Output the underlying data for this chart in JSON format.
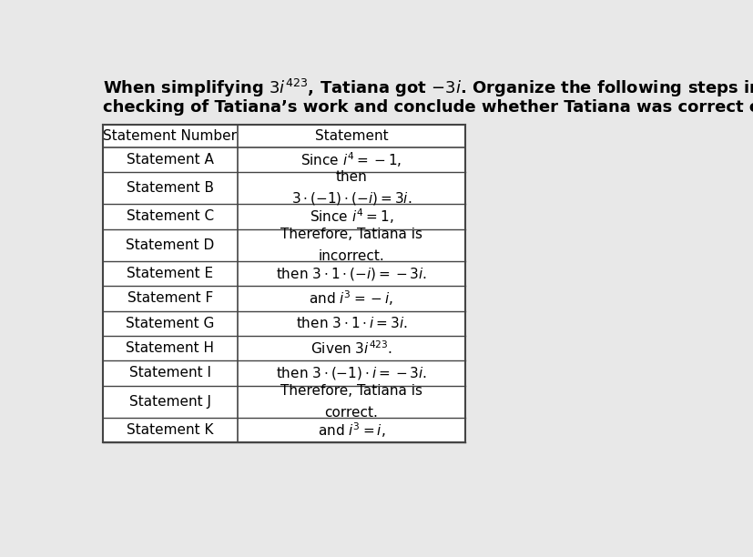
{
  "col1_header": "Statement Number",
  "col2_header": "Statement",
  "rows": [
    [
      "Statement A",
      "Since $i^4 = -1,$"
    ],
    [
      "Statement B",
      "then\n$3 \\cdot (-1) \\cdot (-i) = 3i.$"
    ],
    [
      "Statement C",
      "Since $i^4 = 1,$"
    ],
    [
      "Statement D",
      "Therefore, Tatiana is\nincorrect."
    ],
    [
      "Statement E",
      "then $3 \\cdot 1 \\cdot (-i) = -3i.$"
    ],
    [
      "Statement F",
      "and $i^3 = -i,$"
    ],
    [
      "Statement G",
      "then $3 \\cdot 1 \\cdot i = 3i.$"
    ],
    [
      "Statement H",
      "Given $3i^{423}.$"
    ],
    [
      "Statement I",
      "then $3 \\cdot (-1) \\cdot i = -3i.$"
    ],
    [
      "Statement J",
      "Therefore, Tatiana is\ncorrect."
    ],
    [
      "Statement K",
      "and $i^3 = i,$"
    ]
  ],
  "bg_color": "#e8e8e8",
  "table_bg": "#ffffff",
  "border_color": "#444444",
  "text_color": "#000000",
  "title_fontsize": 13,
  "table_fontsize": 11,
  "title_bold": true
}
